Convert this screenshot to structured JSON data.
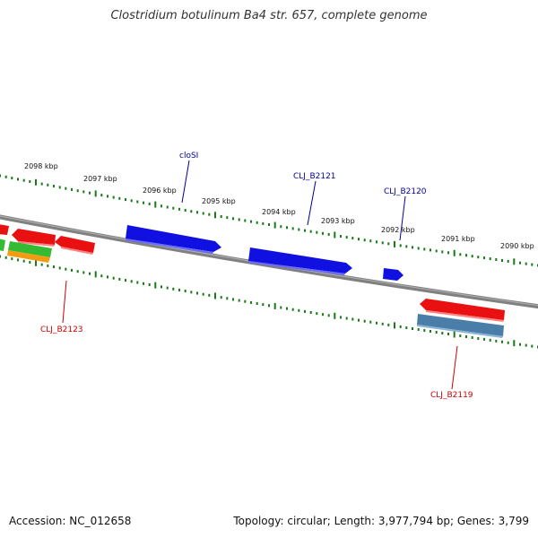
{
  "title": "Clostridium botulinum Ba4 str. 657, complete genome",
  "footer": {
    "accession": "Accession: NC_012658",
    "summary": "Topology: circular; Length: 3,977,794 bp; Genes: 3,799"
  },
  "colors": {
    "backbone": "#808080",
    "tick": "#1a7a1a",
    "forward_cds": "#1010e0",
    "reverse_cds": "#e81010",
    "rna": "#4a7ea8",
    "green_feature": "#33bb33",
    "orange_feature": "#f39c12",
    "label_blue": "#000099",
    "label_red": "#cc0000"
  },
  "ticks": [
    {
      "label": "2098 kbp"
    },
    {
      "label": "2097 kbp"
    },
    {
      "label": "2096 kbp"
    },
    {
      "label": "2095 kbp"
    },
    {
      "label": "2094 kbp"
    },
    {
      "label": "2093 kbp"
    },
    {
      "label": "2092 kbp"
    },
    {
      "label": "2091 kbp"
    },
    {
      "label": "2090 kbp"
    }
  ],
  "gene_labels": [
    {
      "name": "cloSI",
      "strand": "forward"
    },
    {
      "name": "CLJ_B2121",
      "strand": "forward"
    },
    {
      "name": "CLJ_B2120",
      "strand": "forward"
    },
    {
      "name": "CLJ_B2123",
      "strand": "reverse"
    },
    {
      "name": "CLJ_B2119",
      "strand": "reverse"
    }
  ]
}
